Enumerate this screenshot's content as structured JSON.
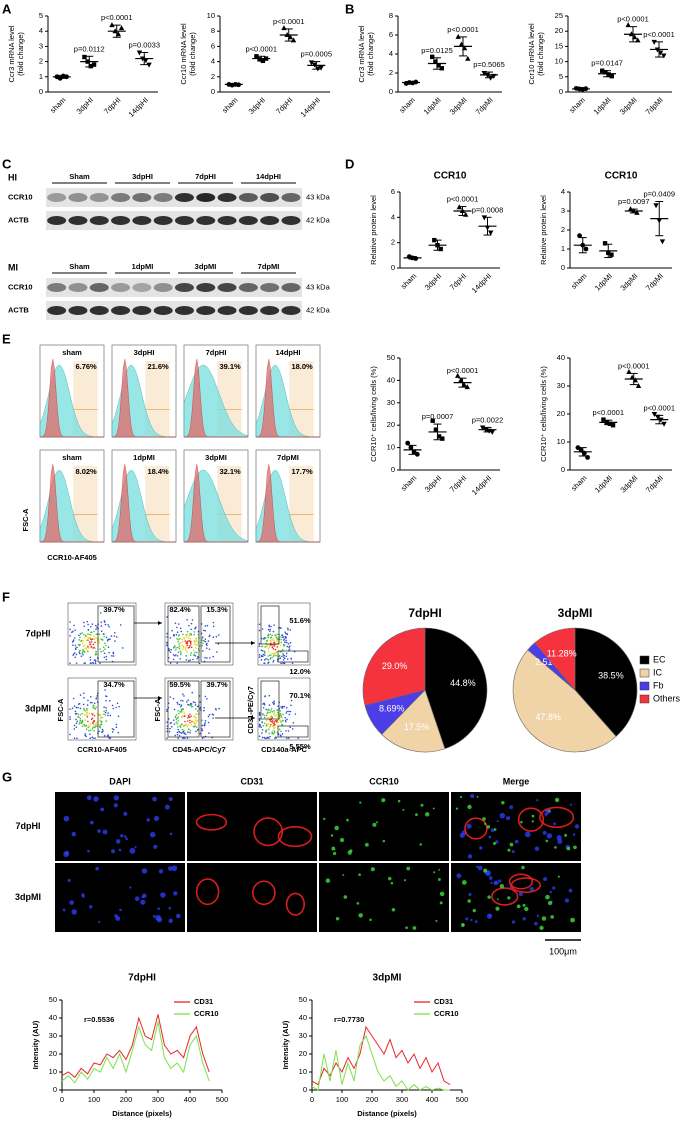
{
  "panel_letters": [
    "A",
    "B",
    "C",
    "D",
    "E",
    "F",
    "G"
  ],
  "blots": {
    "hi": {
      "title": "HI",
      "groups": [
        "Sham",
        "3dpHI",
        "7dpHI",
        "14dpHI"
      ],
      "rows": [
        "CCR10",
        "ACTB"
      ],
      "sizes": [
        "43 kDa",
        "42 kDa"
      ]
    },
    "mi": {
      "title": "MI",
      "groups": [
        "Sham",
        "1dpMI",
        "3dpMI",
        "7dpMI"
      ],
      "rows": [
        "CCR10",
        "ACTB"
      ],
      "sizes": [
        "43 kDa",
        "42 kDa"
      ]
    }
  },
  "flow_histograms": {
    "rows": [
      {
        "labels": [
          "sham",
          "3dpHI",
          "7dpHI",
          "14dpHI"
        ],
        "percents": [
          "6.76%",
          "21.6%",
          "39.1%",
          "18.0%"
        ]
      },
      {
        "labels": [
          "sham",
          "1dpMI",
          "3dpMI",
          "7dpMI"
        ],
        "percents": [
          "8.02%",
          "18.4%",
          "32.1%",
          "17.7%"
        ]
      }
    ],
    "y_label": "FSC-A",
    "x_label": "CCR10-AF405"
  },
  "flow_density": {
    "rows": [
      {
        "label": "7dpHI",
        "gates": [
          "39.7%",
          "82.4%",
          "15.3%",
          "51.6%",
          "12.0%"
        ]
      },
      {
        "label": "3dpMI",
        "gates": [
          "34.7%",
          "59.5%",
          "39.7%",
          "70.1%",
          "5.55%"
        ]
      }
    ],
    "x_labels": [
      "CCR10-AF405",
      "CD45-APC/Cy7",
      "CD140a-APC"
    ],
    "y_labels": [
      "FSC-A",
      "FSC-A",
      "CD31-PE/Cy7"
    ]
  },
  "microscopy": {
    "columns": [
      "DAPI",
      "CD31",
      "CCR10",
      "Merge"
    ],
    "rows": [
      "7dpHI",
      "3dpMI"
    ],
    "scale_bar": "100μm"
  },
  "chart_data": [
    {
      "type": "dot",
      "y_label": [
        "Ccr3 mRNA level",
        "(fold change)"
      ],
      "categories": [
        "sham",
        "3dpHI",
        "7dpHI",
        "14dpHI"
      ],
      "color": "#000000",
      "points": [
        [
          1.0,
          0.9,
          1.05,
          1.0
        ],
        [
          2.3,
          2.0,
          1.7,
          1.8
        ],
        [
          4.4,
          4.0,
          3.8,
          4.2
        ],
        [
          2.6,
          2.2,
          2.1,
          1.8
        ]
      ],
      "values": [
        1.0,
        2.0,
        4.0,
        2.2
      ],
      "errors": [
        0.1,
        0.35,
        0.4,
        0.4
      ],
      "p_values": [
        null,
        "p=0.0112",
        "p<0.0001",
        "p=0.0033"
      ],
      "ylim": [
        0,
        5
      ],
      "yticks": [
        0,
        1,
        2,
        3,
        4,
        5
      ]
    },
    {
      "type": "dot",
      "y_label": [
        "Ccr10 mRNA level",
        "(fold change)"
      ],
      "categories": [
        "sham",
        "3dpHI",
        "7dpHI",
        "14dpHI"
      ],
      "color": "#000000",
      "points": [
        [
          1.0,
          0.9,
          1.0,
          0.95
        ],
        [
          4.7,
          4.3,
          4.1,
          4.4
        ],
        [
          8.4,
          7.5,
          7.2,
          6.8
        ],
        [
          3.9,
          3.6,
          3.1,
          3.2
        ]
      ],
      "values": [
        1.0,
        4.4,
        7.5,
        3.5
      ],
      "errors": [
        0.1,
        0.3,
        0.8,
        0.5
      ],
      "p_values": [
        null,
        "p<0.0001",
        "p<0.0001",
        "p=0.0005"
      ],
      "ylim": [
        0,
        10
      ],
      "yticks": [
        0,
        2,
        4,
        6,
        8,
        10
      ]
    },
    {
      "type": "dot",
      "y_label": [
        "Ccr3 mRNA level",
        "(fold change)"
      ],
      "categories": [
        "sham",
        "1dpMI",
        "3dpMI",
        "7dpMI"
      ],
      "color": "#000000",
      "points": [
        [
          0.9,
          1.0,
          0.95,
          1.05
        ],
        [
          3.7,
          3.2,
          2.8,
          2.5
        ],
        [
          5.8,
          5.0,
          4.6,
          3.5
        ],
        [
          2.0,
          1.8,
          1.5,
          1.7
        ]
      ],
      "values": [
        1.0,
        3.0,
        4.8,
        1.8
      ],
      "errors": [
        0.1,
        0.6,
        1.0,
        0.3
      ],
      "p_values": [
        null,
        "p=0.0125",
        "p<0.0001",
        "p=0.5065"
      ],
      "ylim": [
        0,
        8
      ],
      "yticks": [
        0,
        2,
        4,
        6,
        8
      ]
    },
    {
      "type": "dot",
      "y_label": [
        "Ccr10 mRNA level",
        "(fold change)"
      ],
      "categories": [
        "sham",
        "1dpMI",
        "3dpMI",
        "7dpMI"
      ],
      "color": "#000000",
      "points": [
        [
          1.2,
          1.0,
          0.9,
          1.1
        ],
        [
          7.0,
          6.5,
          5.8,
          5.2
        ],
        [
          22,
          19,
          18,
          17
        ],
        [
          16.5,
          14,
          13,
          12
        ]
      ],
      "values": [
        1.0,
        6.0,
        19,
        14
      ],
      "errors": [
        0.2,
        1.0,
        2.5,
        2.5
      ],
      "p_values": [
        null,
        "p=0.0147",
        "p<0.0001",
        "p<0.0001"
      ],
      "ylim": [
        0,
        25
      ],
      "yticks": [
        0,
        5,
        10,
        15,
        20,
        25
      ]
    },
    {
      "type": "dot",
      "title": "CCR10",
      "y_label": [
        "Relative protein level"
      ],
      "categories": [
        "sham",
        "3dpHI",
        "7dpHI",
        "14dpHI"
      ],
      "color": "#000000",
      "points": [
        [
          0.9,
          0.8,
          0.75
        ],
        [
          2.2,
          1.8,
          1.5
        ],
        [
          4.8,
          4.5,
          4.2
        ],
        [
          4.0,
          3.2,
          2.8
        ]
      ],
      "values": [
        0.8,
        1.8,
        4.5,
        3.3
      ],
      "errors": [
        0.1,
        0.4,
        0.35,
        0.7
      ],
      "p_values": [
        null,
        null,
        "p<0.0001",
        "p=0.0008"
      ],
      "ylim": [
        0,
        6
      ],
      "yticks": [
        0,
        2,
        4,
        6
      ]
    },
    {
      "type": "dot",
      "title": "CCR10",
      "y_label": [
        "Relative protein level"
      ],
      "categories": [
        "sham",
        "1dpMI",
        "3dpMI",
        "7dpMI"
      ],
      "color": "#000000",
      "points": [
        [
          1.7,
          1.2,
          1.0
        ],
        [
          1.3,
          0.8,
          0.7
        ],
        [
          3.1,
          3.0,
          2.9
        ],
        [
          3.3,
          2.5,
          1.4
        ]
      ],
      "values": [
        1.2,
        0.9,
        3.0,
        2.6
      ],
      "errors": [
        0.4,
        0.35,
        0.1,
        0.9
      ],
      "p_values": [
        null,
        null,
        "p=0.0097",
        "p=0.0409"
      ],
      "ylim": [
        0,
        4
      ],
      "yticks": [
        0,
        1,
        2,
        3,
        4
      ]
    },
    {
      "type": "dot",
      "y_label": [
        "CCR10⁺ cells/living cells (%)"
      ],
      "categories": [
        "sham",
        "3dpHI",
        "7dpHI",
        "14dpHI"
      ],
      "color": "#000000",
      "points": [
        [
          12,
          10,
          8,
          7
        ],
        [
          22,
          18,
          15,
          14
        ],
        [
          42,
          40,
          38,
          37
        ],
        [
          19,
          18,
          17.5,
          17
        ]
      ],
      "values": [
        9,
        17,
        39,
        18
      ],
      "errors": [
        2,
        3.5,
        2,
        1
      ],
      "p_values": [
        null,
        "p=0.0007",
        "p<0.0001",
        "p=0.0022"
      ],
      "ylim": [
        0,
        50
      ],
      "yticks": [
        0,
        10,
        20,
        30,
        40,
        50
      ]
    },
    {
      "type": "dot",
      "y_label": [
        "CCR10⁺ cells/living cells (%)"
      ],
      "categories": [
        "sham",
        "1dpMI",
        "3dpMI",
        "7dpMI"
      ],
      "color": "#000000",
      "points": [
        [
          8,
          7,
          6,
          4.5
        ],
        [
          18,
          17,
          16.5,
          16
        ],
        [
          35,
          33,
          32,
          30
        ],
        [
          20,
          19,
          18,
          16.5
        ]
      ],
      "values": [
        6.5,
        17,
        32.5,
        18
      ],
      "errors": [
        1.5,
        0.8,
        2,
        1.5
      ],
      "p_values": [
        null,
        "p<0.0001",
        "p<0.0001",
        "p<0.0001"
      ],
      "ylim": [
        0,
        40
      ],
      "yticks": [
        0,
        10,
        20,
        30,
        40
      ]
    },
    {
      "type": "pie",
      "title": "7dpHI",
      "categories": [
        "EC",
        "IC",
        "Fb",
        "Others"
      ],
      "values": [
        44.8,
        17.5,
        8.69,
        29.0
      ],
      "value_labels": [
        "44.8%",
        "17.5%",
        "8.69%",
        "29.0%"
      ],
      "colors": [
        "#000000",
        "#f1d3a8",
        "#4b3de8",
        "#f5333f"
      ]
    },
    {
      "type": "pie",
      "title": "3dpMI",
      "categories": [
        "EC",
        "IC",
        "Fb",
        "Others"
      ],
      "values": [
        38.5,
        47.8,
        2.51,
        11.28
      ],
      "value_labels": [
        "38.5%",
        "47.8%",
        "2.51%",
        "11.28%"
      ],
      "colors": [
        "#000000",
        "#f1d3a8",
        "#4b3de8",
        "#f5333f"
      ]
    },
    {
      "type": "line",
      "title": "7dpHI",
      "annotation": "r=0.5536",
      "x_label": "Distance (pixels)",
      "y_label": "Intensity (AU)",
      "x": [
        0,
        20,
        40,
        60,
        80,
        100,
        120,
        140,
        160,
        180,
        200,
        220,
        240,
        260,
        280,
        300,
        320,
        340,
        360,
        380,
        400,
        420,
        440,
        460
      ],
      "series": [
        {
          "name": "CD31",
          "color": "#e8262a",
          "values": [
            8,
            10,
            7,
            12,
            9,
            15,
            14,
            20,
            18,
            22,
            17,
            25,
            40,
            30,
            28,
            42,
            25,
            20,
            22,
            18,
            30,
            35,
            20,
            10
          ]
        },
        {
          "name": "CCR10",
          "color": "#7ee04a",
          "values": [
            5,
            8,
            4,
            10,
            6,
            12,
            10,
            18,
            12,
            20,
            10,
            22,
            35,
            25,
            22,
            38,
            18,
            12,
            15,
            10,
            25,
            30,
            15,
            5
          ]
        }
      ],
      "xlim": [
        0,
        500
      ],
      "xticks": [
        0,
        100,
        200,
        300,
        400,
        500
      ],
      "ylim": [
        0,
        50
      ],
      "yticks": [
        0,
        10,
        20,
        30,
        40,
        50
      ]
    },
    {
      "type": "line",
      "title": "3dpMI",
      "annotation": "r=0.7730",
      "x_label": "Distance (pixels)",
      "y_label": "Intensity (AU)",
      "x": [
        0,
        20,
        40,
        60,
        80,
        100,
        120,
        140,
        160,
        180,
        200,
        220,
        240,
        260,
        280,
        300,
        320,
        340,
        360,
        380,
        400,
        420,
        440,
        460
      ],
      "series": [
        {
          "name": "CD31",
          "color": "#e8262a",
          "values": [
            5,
            3,
            12,
            8,
            15,
            10,
            18,
            12,
            20,
            35,
            30,
            25,
            20,
            28,
            18,
            22,
            15,
            20,
            12,
            18,
            10,
            15,
            5,
            3
          ]
        },
        {
          "name": "CCR10",
          "color": "#7ee04a",
          "values": [
            2,
            0,
            20,
            5,
            22,
            3,
            15,
            5,
            25,
            30,
            20,
            10,
            5,
            8,
            2,
            5,
            0,
            3,
            0,
            2,
            0,
            1,
            0,
            0
          ]
        }
      ],
      "xlim": [
        0,
        500
      ],
      "xticks": [
        0,
        100,
        200,
        300,
        400,
        500
      ],
      "ylim": [
        0,
        50
      ],
      "yticks": [
        0,
        10,
        20,
        30,
        40,
        50
      ]
    }
  ]
}
